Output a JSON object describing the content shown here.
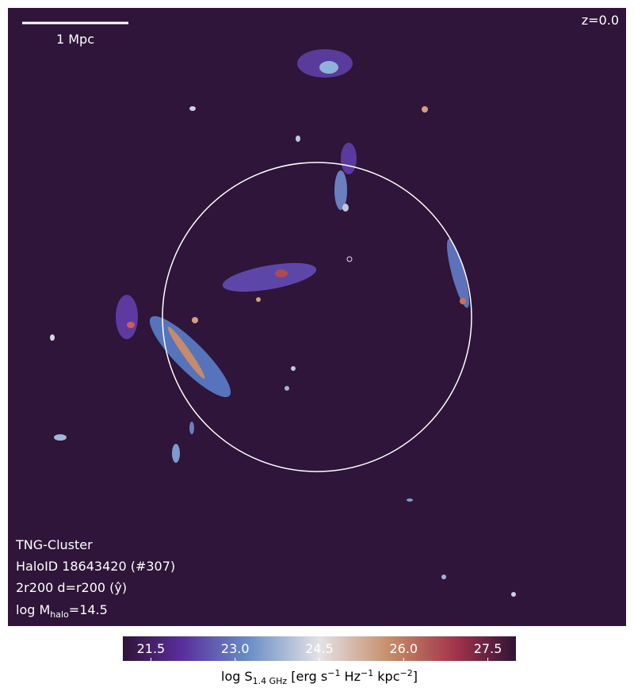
{
  "chart_data": {
    "type": "image",
    "annotations": {
      "scale_bar": "1 Mpc",
      "redshift": "z=0.0",
      "name": "TNG-Cluster",
      "halo": "HaloID 18643420 (#307)",
      "projection": "2r200 d=r200 (ŷ)",
      "mass": [
        "log M",
        "halo",
        "=14.5"
      ]
    },
    "colorbar": {
      "label": [
        "log S",
        "1.4 GHz",
        " [erg s",
        "−1",
        " Hz",
        "−1",
        " kpc",
        "−2",
        "]"
      ],
      "clim": [
        21,
        28
      ],
      "ticks": [
        21.5,
        {
          "value": 23,
          "label": "23.0"
        },
        24.5,
        {
          "value": 26,
          "label": "26.0"
        },
        27.5
      ]
    }
  }
}
